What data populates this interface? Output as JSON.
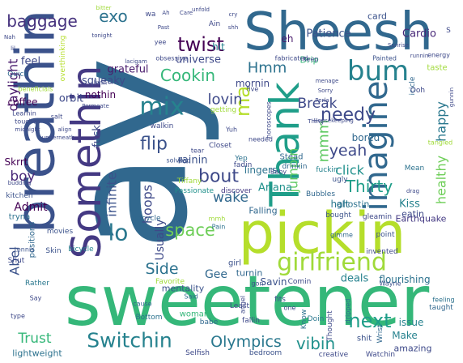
{
  "word_cloud": {
    "words": [
      {
        "text": "ay",
        "color": "#31688e"
      },
      {
        "text": "sweetener",
        "color": "#35b779"
      },
      {
        "text": "Sheesh",
        "color": "#31688e"
      },
      {
        "text": "breathin",
        "color": "#3b528b"
      },
      {
        "text": "pickin",
        "color": "#b5de2b"
      },
      {
        "text": "Somethin",
        "color": "#443983"
      },
      {
        "text": "Thank",
        "color": "#1f9e89"
      },
      {
        "text": "girlfriend",
        "color": "#a0da39"
      },
      {
        "text": "imagine",
        "color": "#31688e"
      },
      {
        "text": "bum",
        "color": "#26828e"
      },
      {
        "text": "Switchin",
        "color": "#26828e"
      },
      {
        "text": "Olympics",
        "color": "#2a788e"
      },
      {
        "text": "baggage",
        "color": "#46327e"
      },
      {
        "text": "twist",
        "color": "#440154"
      },
      {
        "text": "mix",
        "color": "#26828e"
      },
      {
        "text": "Cookin",
        "color": "#35b779"
      },
      {
        "text": "ma",
        "color": "#b5de2b"
      },
      {
        "text": "needy",
        "color": "#3e4989"
      },
      {
        "text": "next",
        "color": "#1f9e89"
      },
      {
        "text": "vibin",
        "color": "#21918c"
      },
      {
        "text": "Thirty",
        "color": "#1f9e89"
      },
      {
        "text": "yeah",
        "color": "#3e4989"
      },
      {
        "text": "flip",
        "color": "#3b528b"
      },
      {
        "text": "bout",
        "color": "#3e4989"
      },
      {
        "text": "lo",
        "color": "#2a788e"
      },
      {
        "text": "space",
        "color": "#6ece58"
      },
      {
        "text": "Side",
        "color": "#2c728e"
      },
      {
        "text": "Gee",
        "color": "#31688e"
      },
      {
        "text": "Abel",
        "color": "#3b528b"
      },
      {
        "text": "infinite",
        "color": "#3b528b"
      },
      {
        "text": "hoops",
        "color": "#3e4989"
      },
      {
        "text": "daylight",
        "color": "#481a6c"
      },
      {
        "text": "boy",
        "color": "#482878"
      },
      {
        "text": "Trust",
        "color": "#35b779"
      },
      {
        "text": "Admit",
        "color": "#440154"
      },
      {
        "text": "exo",
        "color": "#2c728e"
      },
      {
        "text": "Hmm",
        "color": "#2c728e"
      },
      {
        "text": "Break",
        "color": "#3e4989"
      },
      {
        "text": "mmm",
        "color": "#5ec962"
      },
      {
        "text": "jumpin",
        "color": "#5ec962"
      },
      {
        "text": "happy",
        "color": "#2a788e"
      },
      {
        "text": "lovin",
        "color": "#3e4989"
      },
      {
        "text": "wake",
        "color": "#31688e"
      },
      {
        "text": "click",
        "color": "#21918c"
      },
      {
        "text": "healthy",
        "color": "#6ece58"
      },
      {
        "text": "Usually",
        "color": "#3e4989"
      },
      {
        "text": "Ariana",
        "color": "#21918c"
      },
      {
        "text": "Kiss",
        "color": "#26828e"
      },
      {
        "text": "Patience",
        "color": "#3b528b"
      },
      {
        "text": "Cardio",
        "color": "#482878"
      },
      {
        "text": "universe",
        "color": "#3e4989"
      },
      {
        "text": "grateful",
        "color": "#481a6c"
      },
      {
        "text": "squeaky",
        "color": "#3e4989"
      },
      {
        "text": "nothin",
        "color": "#440154"
      },
      {
        "text": "orbit",
        "color": "#3e4989"
      },
      {
        "text": "fuck",
        "color": "#3e4989"
      },
      {
        "text": "rainin",
        "color": "#3b528b"
      },
      {
        "text": "Skrrt",
        "color": "#440154"
      },
      {
        "text": "feel",
        "color": "#3e4989"
      },
      {
        "text": "coffee",
        "color": "#440154"
      },
      {
        "text": "hit",
        "color": "#26828e"
      },
      {
        "text": "eh",
        "color": "#481a6c"
      },
      {
        "text": "card",
        "color": "#3b528b"
      },
      {
        "text": "Drip",
        "color": "#35b779"
      },
      {
        "text": "mornin",
        "color": "#3e4989"
      },
      {
        "text": "lingers",
        "color": "#2c728e"
      },
      {
        "text": "bored",
        "color": "#31688e"
      },
      {
        "text": "halt",
        "color": "#2a788e"
      },
      {
        "text": "Earthquake",
        "color": "#443983"
      },
      {
        "text": "Falling",
        "color": "#31688e"
      },
      {
        "text": "Savin",
        "color": "#3b528b"
      },
      {
        "text": "deals",
        "color": "#26828e"
      },
      {
        "text": "flourishing",
        "color": "#2c728e"
      },
      {
        "text": "turnin",
        "color": "#31688e"
      },
      {
        "text": "ghostin",
        "color": "#2c728e"
      },
      {
        "text": "eatin",
        "color": "#3e4989"
      },
      {
        "text": "mentality",
        "color": "#3b528b"
      },
      {
        "text": "issue",
        "color": "#26828e"
      },
      {
        "text": "Make",
        "color": "#26828e"
      },
      {
        "text": "amazing",
        "color": "#3e4989"
      },
      {
        "text": "lightweight",
        "color": "#2c728e"
      },
      {
        "text": "woman",
        "color": "#35b779"
      },
      {
        "text": "positions",
        "color": "#31688e"
      },
      {
        "text": "tryna",
        "color": "#2c728e"
      },
      {
        "text": "kitchen",
        "color": "#3b528b"
      },
      {
        "text": "Shut",
        "color": "#3e4989"
      },
      {
        "text": "movies",
        "color": "#3b528b"
      },
      {
        "text": "Skin",
        "color": "#3b528b"
      },
      {
        "text": "bicycle",
        "color": "#26828e"
      },
      {
        "text": "tricycle",
        "color": "#31688e"
      },
      {
        "text": "girl",
        "color": "#3b528b"
      },
      {
        "text": "Favorite",
        "color": "#a0da39"
      },
      {
        "text": "Rather",
        "color": "#2a788e"
      },
      {
        "text": "Passionate",
        "color": "#21918c"
      },
      {
        "text": "discover",
        "color": "#443983"
      },
      {
        "text": "Tiffany",
        "color": "#a0da39"
      },
      {
        "text": "fadin",
        "color": "#3e4989"
      },
      {
        "text": "Stead",
        "color": "#31688e"
      },
      {
        "text": "drinkin",
        "color": "#31688e"
      },
      {
        "text": "fuckin",
        "color": "#26828e"
      },
      {
        "text": "ugly",
        "color": "#3b528b"
      },
      {
        "text": "Mean",
        "color": "#2c728e"
      },
      {
        "text": "Bubbles",
        "color": "#31688e"
      },
      {
        "text": "gleamin",
        "color": "#3e4989"
      },
      {
        "text": "bought",
        "color": "#3b528b"
      },
      {
        "text": "invented",
        "color": "#3e4989"
      },
      {
        "text": "point",
        "color": "#3b528b"
      },
      {
        "text": "gimme",
        "color": "#31688e"
      },
      {
        "text": "Wayne",
        "color": "#3b528b"
      },
      {
        "text": "Know",
        "color": "#2c728e"
      },
      {
        "text": "Doin",
        "color": "#2a788e"
      },
      {
        "text": "Thought",
        "color": "#3e4989"
      },
      {
        "text": "dripped",
        "color": "#2c728e"
      },
      {
        "text": "shit",
        "color": "#3b528b"
      },
      {
        "text": "Wrist",
        "color": "#31688e"
      },
      {
        "text": "taught",
        "color": "#31688e"
      },
      {
        "text": "feeling",
        "color": "#2c728e"
      },
      {
        "text": "creative",
        "color": "#3e4989"
      },
      {
        "text": "Watchin",
        "color": "#3e4989"
      },
      {
        "text": "Selfish",
        "color": "#3e4989"
      },
      {
        "text": "bedroom",
        "color": "#3b528b"
      },
      {
        "text": "babe",
        "color": "#31688e"
      },
      {
        "text": "Bottom",
        "color": "#2c728e"
      },
      {
        "text": "Least",
        "color": "#3e4989"
      },
      {
        "text": "angel",
        "color": "#3e4989"
      },
      {
        "text": "fallin",
        "color": "#3e4989"
      },
      {
        "text": "Comin",
        "color": "#3e4989"
      },
      {
        "text": "fits",
        "color": "#3b528b"
      },
      {
        "text": "one",
        "color": "#3e4989"
      },
      {
        "text": "Said",
        "color": "#31688e"
      },
      {
        "text": "cause",
        "color": "#31688e"
      },
      {
        "text": "tennis",
        "color": "#3b528b"
      },
      {
        "text": "Say",
        "color": "#3e4989"
      },
      {
        "text": "type",
        "color": "#3e4989"
      },
      {
        "text": "gon",
        "color": "#3b528b"
      },
      {
        "text": "Pain",
        "color": "#2c728e"
      },
      {
        "text": "mmh",
        "color": "#a0da39"
      },
      {
        "text": "Yep",
        "color": "#2c728e"
      },
      {
        "text": "Baby",
        "color": "#3e4989"
      },
      {
        "text": "Bad",
        "color": "#3b528b"
      },
      {
        "text": "solve",
        "color": "#3b528b"
      },
      {
        "text": "Closet",
        "color": "#3e4989"
      },
      {
        "text": "tear",
        "color": "#3e4989"
      },
      {
        "text": "Yuh",
        "color": "#3e4989"
      },
      {
        "text": "needed",
        "color": "#3e4989"
      },
      {
        "text": "Housekeeping",
        "color": "#3e4989"
      },
      {
        "text": "Thing",
        "color": "#3e4989"
      },
      {
        "text": "Perla",
        "color": "#3e4989"
      },
      {
        "text": "Sorry",
        "color": "#3e4989"
      },
      {
        "text": "menage",
        "color": "#3e4989"
      },
      {
        "text": "icicle",
        "color": "#31688e"
      },
      {
        "text": "Ooh",
        "color": "#3e4989"
      },
      {
        "text": "taste",
        "color": "#a0da39"
      },
      {
        "text": "energy",
        "color": "#3e4989"
      },
      {
        "text": "runnin",
        "color": "#3e4989"
      },
      {
        "text": "keep",
        "color": "#3e4989"
      },
      {
        "text": "Painted",
        "color": "#3b528b"
      },
      {
        "text": "Sunrise",
        "color": "#3e4989"
      },
      {
        "text": "unfold",
        "color": "#3e4989"
      },
      {
        "text": "cry",
        "color": "#3e4989"
      },
      {
        "text": "Care",
        "color": "#3e4989"
      },
      {
        "text": "Ah",
        "color": "#3e4989"
      },
      {
        "text": "Ain",
        "color": "#3e4989"
      },
      {
        "text": "shh",
        "color": "#3e4989"
      },
      {
        "text": "Past",
        "color": "#3e4989"
      },
      {
        "text": "wa",
        "color": "#3e4989"
      },
      {
        "text": "bitter",
        "color": "#a0da39"
      },
      {
        "text": "tonight",
        "color": "#3e4989"
      },
      {
        "text": "yee",
        "color": "#3e4989"
      },
      {
        "text": "Nah",
        "color": "#3e4989"
      },
      {
        "text": "lil",
        "color": "#3e4989"
      },
      {
        "text": "overthinking",
        "color": "#b5de2b"
      },
      {
        "text": "livin",
        "color": "#3e4989"
      },
      {
        "text": "Learnin",
        "color": "#3e4989"
      },
      {
        "text": "beneficials",
        "color": "#a0da39"
      },
      {
        "text": "touches",
        "color": "#3e4989"
      },
      {
        "text": "midnight",
        "color": "#3e4989"
      },
      {
        "text": "align",
        "color": "#3e4989"
      },
      {
        "text": "salt",
        "color": "#3e4989"
      },
      {
        "text": "Quick",
        "color": "#31688e"
      },
      {
        "text": "Permeate",
        "color": "#3e4989"
      },
      {
        "text": "getting",
        "color": "#a0da39"
      },
      {
        "text": "obsessive",
        "color": "#3e4989"
      },
      {
        "text": "lacigam",
        "color": "#3e4989"
      },
      {
        "text": "underneath",
        "color": "#3e4989"
      },
      {
        "text": "walkin",
        "color": "#3e4989"
      },
      {
        "text": "horoscopes",
        "color": "#3e4989"
      },
      {
        "text": "five",
        "color": "#3e4989"
      },
      {
        "text": "fabricated",
        "color": "#3e4989"
      },
      {
        "text": "budding",
        "color": "#3e4989"
      },
      {
        "text": "drag",
        "color": "#3e4989"
      },
      {
        "text": "tangled",
        "color": "#a0da39"
      },
      {
        "text": "gunnin",
        "color": "#3e4989"
      },
      {
        "text": "S",
        "color": "#3e4989"
      }
    ]
  }
}
